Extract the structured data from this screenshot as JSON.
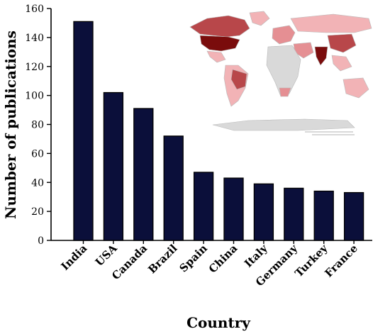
{
  "chart_data": {
    "type": "bar",
    "categories": [
      "India",
      "USA",
      "Canada",
      "Brazil",
      "Spain",
      "China",
      "Italy",
      "Germany",
      "Turkey",
      "France"
    ],
    "values": [
      151,
      102,
      91,
      72,
      47,
      43,
      39,
      36,
      34,
      33
    ],
    "xlabel": "Country",
    "ylabel": "Number of publications",
    "ylim": [
      0,
      160
    ],
    "yticks": [
      0,
      20,
      40,
      60,
      80,
      100,
      120,
      140,
      160
    ],
    "grid": false,
    "legend": "none",
    "colors": {
      "bar": "#0b0f3a",
      "map_high": "#7a0c0c",
      "map_mid": "#b8474a",
      "map_low": "#f2b3b6",
      "map_none": "#d9d9d9"
    },
    "inset": "world choropleth map of publications by country, top-right"
  }
}
